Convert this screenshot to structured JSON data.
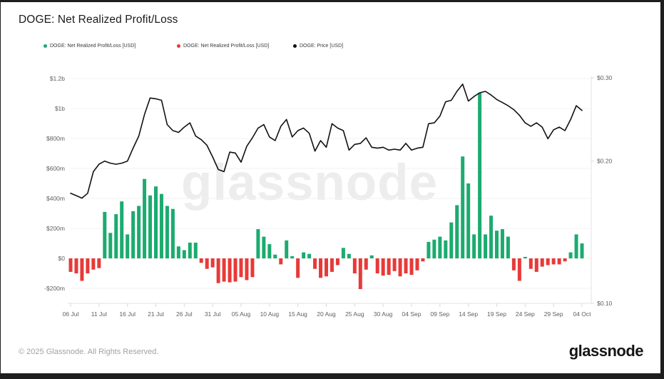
{
  "header": {
    "title": "DOGE: Net Realized Profit/Loss"
  },
  "legend": [
    {
      "label": "DOGE: Net Realized Profit/Loss [USD]",
      "color": "#1cab6f",
      "icon": "green-dot-icon"
    },
    {
      "label": "DOGE: Net Realized Profit/Loss [USD]",
      "color": "#e73a38",
      "icon": "red-dot-icon"
    },
    {
      "label": "DOGE: Price [USD]",
      "color": "#111111",
      "icon": "black-dot-icon"
    }
  ],
  "watermark": "glassnode",
  "footer": {
    "copyright": "© 2025 Glassnode. All Rights Reserved.",
    "logo_text": "glassnode"
  },
  "chart_data": {
    "type": "bar",
    "subtype": "bar-and-line-dual-axis",
    "title": "DOGE: Net Realized Profit/Loss",
    "x_tick_labels": [
      "06 Jul",
      "11 Jul",
      "16 Jul",
      "21 Jul",
      "26 Jul",
      "31 Jul",
      "05 Aug",
      "10 Aug",
      "15 Aug",
      "20 Aug",
      "25 Aug",
      "30 Aug",
      "04 Sep",
      "09 Sep",
      "14 Sep",
      "19 Sep",
      "24 Sep",
      "29 Sep",
      "04 Oct"
    ],
    "x_tick_interval_days": 5,
    "left_axis": {
      "unit": "USD",
      "scale": "linear",
      "labels": [
        "$1.2b",
        "$1b",
        "$800m",
        "$600m",
        "$400m",
        "$200m",
        "$0",
        "-$200m"
      ],
      "values_millions": [
        1200,
        1000,
        800,
        600,
        400,
        200,
        0,
        -200
      ],
      "grid": true
    },
    "right_axis": {
      "unit": "USD",
      "scale": "log",
      "labels": [
        "$0.30",
        "$0.20",
        "$0.10"
      ],
      "values": [
        0.3,
        0.2,
        0.1
      ],
      "grid": false
    },
    "series": [
      {
        "name": "DOGE: Net Realized Profit/Loss [USD]",
        "type": "bar",
        "axis": "left",
        "unit": "millions USD",
        "positive_color": "#1cab6f",
        "negative_color": "#e73a38",
        "values": [
          -90,
          -100,
          -150,
          -100,
          -75,
          -65,
          310,
          170,
          295,
          380,
          160,
          315,
          350,
          530,
          420,
          480,
          430,
          350,
          330,
          80,
          55,
          105,
          105,
          -30,
          -70,
          -60,
          -165,
          -155,
          -160,
          -155,
          -125,
          -145,
          -125,
          195,
          145,
          95,
          25,
          -40,
          120,
          15,
          -130,
          40,
          30,
          -70,
          -130,
          -120,
          -90,
          -45,
          70,
          30,
          -100,
          -205,
          -75,
          20,
          -100,
          -115,
          -110,
          -85,
          -120,
          -100,
          -110,
          -80,
          -20,
          110,
          125,
          145,
          120,
          240,
          355,
          680,
          500,
          160,
          1105,
          160,
          285,
          185,
          195,
          145,
          -80,
          -150,
          10,
          -70,
          -90,
          -55,
          -45,
          -40,
          -40,
          -20,
          40,
          160,
          100
        ]
      },
      {
        "name": "DOGE: Price [USD]",
        "type": "line",
        "axis": "right",
        "color": "#111111",
        "values": [
          0.171,
          0.169,
          0.167,
          0.171,
          0.19,
          0.197,
          0.2,
          0.198,
          0.197,
          0.198,
          0.2,
          0.213,
          0.226,
          0.251,
          0.272,
          0.271,
          0.269,
          0.239,
          0.232,
          0.23,
          0.236,
          0.241,
          0.226,
          0.222,
          0.216,
          0.204,
          0.192,
          0.19,
          0.209,
          0.208,
          0.199,
          0.215,
          0.224,
          0.235,
          0.239,
          0.225,
          0.221,
          0.237,
          0.245,
          0.225,
          0.232,
          0.235,
          0.229,
          0.21,
          0.221,
          0.214,
          0.24,
          0.235,
          0.232,
          0.211,
          0.217,
          0.218,
          0.224,
          0.214,
          0.213,
          0.214,
          0.211,
          0.212,
          0.211,
          0.218,
          0.211,
          0.213,
          0.214,
          0.24,
          0.241,
          0.249,
          0.267,
          0.269,
          0.281,
          0.291,
          0.268,
          0.274,
          0.279,
          0.281,
          0.276,
          0.27,
          0.266,
          0.262,
          0.257,
          0.25,
          0.241,
          0.237,
          0.241,
          0.236,
          0.223,
          0.233,
          0.236,
          0.232,
          0.245,
          0.262,
          0.256
        ]
      }
    ],
    "colors": {
      "grid": "#f1f1f1",
      "axis_line": "#e3e3e3",
      "tick": "#d9d9d9",
      "axis_text": "#606060"
    },
    "layout": {
      "legend_position": "top-left",
      "watermark_center": true
    }
  }
}
